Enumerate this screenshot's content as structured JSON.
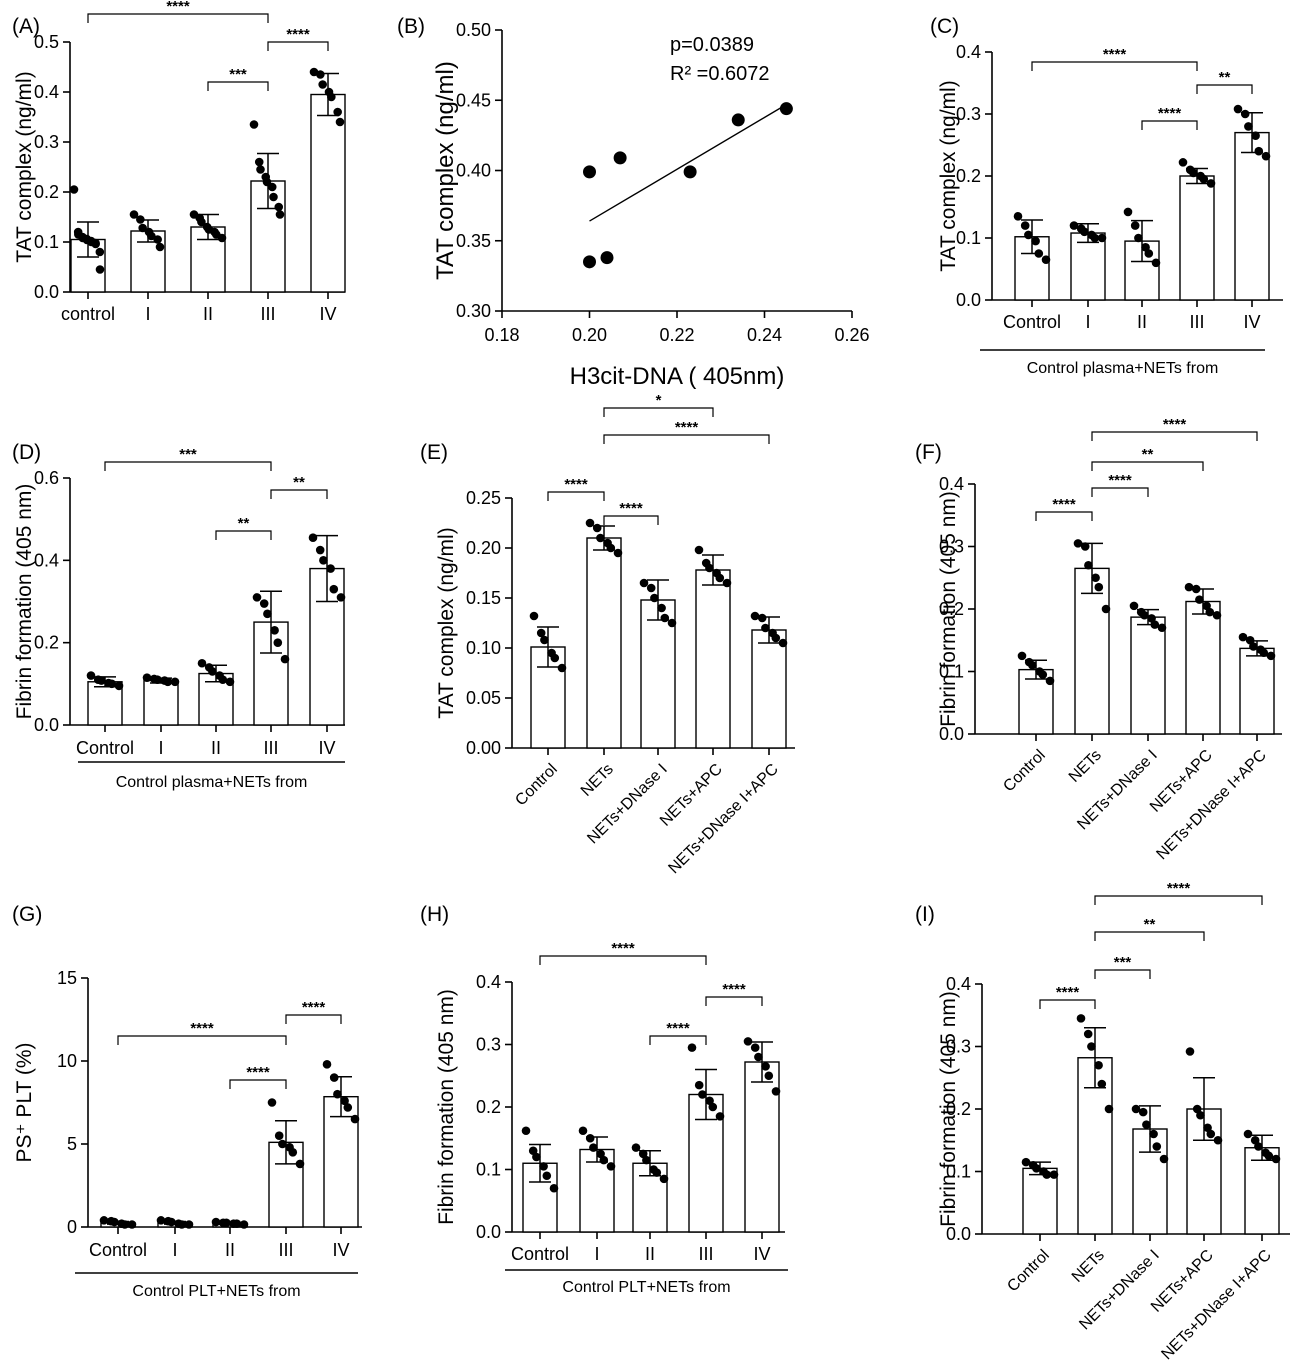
{
  "chart_data": [
    {
      "panel": "(A)",
      "type": "bar",
      "ylabel": "TAT complex (ng/ml)",
      "ylim": [
        0,
        0.5
      ],
      "yticks": [
        "0.0",
        "0.1",
        "0.2",
        "0.3",
        "0.4",
        "0.5"
      ],
      "categories": [
        "control",
        "I",
        "II",
        "III",
        "IV"
      ],
      "means": [
        0.105,
        0.122,
        0.13,
        0.222,
        0.395
      ],
      "sd": [
        0.035,
        0.022,
        0.025,
        0.055,
        0.042
      ],
      "points": [
        [
          0.205,
          0.12,
          0.115,
          0.11,
          0.108,
          0.106,
          0.104,
          0.102,
          0.1,
          0.098,
          0.096,
          0.08,
          0.045
        ],
        [
          0.155,
          0.145,
          0.128,
          0.12,
          0.112,
          0.105,
          0.09
        ],
        [
          0.155,
          0.148,
          0.14,
          0.13,
          0.125,
          0.12,
          0.115,
          0.108
        ],
        [
          0.335,
          0.26,
          0.245,
          0.23,
          0.22,
          0.21,
          0.19,
          0.17,
          0.155
        ],
        [
          0.44,
          0.435,
          0.415,
          0.4,
          0.39,
          0.36,
          0.34
        ]
      ],
      "comparisons": [
        {
          "from": 0,
          "to": 3,
          "label": "****"
        },
        {
          "from": 2,
          "to": 3,
          "label": "***"
        },
        {
          "from": 3,
          "to": 4,
          "label": "****"
        }
      ]
    },
    {
      "panel": "(B)",
      "type": "scatter",
      "xlabel": "H3cit-DNA ( 405nm)",
      "ylabel": "TAT complex (ng/ml)",
      "xlim": [
        0.18,
        0.26
      ],
      "ylim": [
        0.3,
        0.5
      ],
      "xticks": [
        "0.18",
        "0.20",
        "0.22",
        "0.24",
        "0.26"
      ],
      "yticks": [
        "0.30",
        "0.35",
        "0.40",
        "0.45",
        "0.50"
      ],
      "points": [
        [
          0.2,
          0.399
        ],
        [
          0.2,
          0.335
        ],
        [
          0.204,
          0.338
        ],
        [
          0.207,
          0.409
        ],
        [
          0.223,
          0.399
        ],
        [
          0.234,
          0.436
        ],
        [
          0.245,
          0.444
        ]
      ],
      "fit": [
        [
          0.2,
          0.364
        ],
        [
          0.245,
          0.447
        ]
      ],
      "stats": [
        "p=0.0389",
        "R² =0.6072"
      ]
    },
    {
      "panel": "(C)",
      "type": "bar",
      "ylabel": "TAT complex (ng/ml)",
      "ylim": [
        0,
        0.4
      ],
      "yticks": [
        "0.0",
        "0.1",
        "0.2",
        "0.3",
        "0.4"
      ],
      "categories": [
        "Control",
        "I",
        "II",
        "III",
        "IV"
      ],
      "group_label": "Control plasma+NETs from",
      "means": [
        0.102,
        0.108,
        0.095,
        0.2,
        0.27
      ],
      "sd": [
        0.027,
        0.015,
        0.033,
        0.012,
        0.032
      ],
      "points": [
        [
          0.135,
          0.12,
          0.105,
          0.095,
          0.075,
          0.065
        ],
        [
          0.12,
          0.115,
          0.11,
          0.105,
          0.1,
          0.1
        ],
        [
          0.142,
          0.12,
          0.1,
          0.085,
          0.075,
          0.06
        ],
        [
          0.222,
          0.21,
          0.205,
          0.2,
          0.195,
          0.188
        ],
        [
          0.308,
          0.3,
          0.28,
          0.265,
          0.24,
          0.232
        ]
      ],
      "comparisons": [
        {
          "from": 0,
          "to": 3,
          "label": "****"
        },
        {
          "from": 2,
          "to": 3,
          "label": "****"
        },
        {
          "from": 3,
          "to": 4,
          "label": "**"
        }
      ]
    },
    {
      "panel": "(D)",
      "type": "bar",
      "ylabel": "Fibrin formation (405 nm)",
      "ylim": [
        0,
        0.6
      ],
      "yticks": [
        "0.0",
        "0.2",
        "0.4",
        "0.6"
      ],
      "categories": [
        "Control",
        "I",
        "II",
        "III",
        "IV"
      ],
      "group_label": "Control plasma+NETs from",
      "means": [
        0.105,
        0.108,
        0.125,
        0.25,
        0.38
      ],
      "sd": [
        0.012,
        0.006,
        0.02,
        0.075,
        0.08
      ],
      "points": [
        [
          0.12,
          0.11,
          0.108,
          0.102,
          0.1,
          0.095
        ],
        [
          0.115,
          0.112,
          0.11,
          0.108,
          0.105,
          0.105
        ],
        [
          0.15,
          0.14,
          0.13,
          0.12,
          0.11,
          0.105
        ],
        [
          0.31,
          0.295,
          0.27,
          0.23,
          0.2,
          0.16
        ],
        [
          0.455,
          0.425,
          0.4,
          0.38,
          0.33,
          0.31
        ]
      ],
      "comparisons": [
        {
          "from": 0,
          "to": 3,
          "label": "***"
        },
        {
          "from": 2,
          "to": 3,
          "label": "**"
        },
        {
          "from": 3,
          "to": 4,
          "label": "**"
        }
      ]
    },
    {
      "panel": "(E)",
      "type": "bar",
      "ylabel": "TAT complex (ng/ml)",
      "ylim": [
        0,
        0.25
      ],
      "yticks": [
        "0.00",
        "0.05",
        "0.10",
        "0.15",
        "0.20",
        "0.25"
      ],
      "categories": [
        "Control",
        "NETs",
        "NETs+DNase I",
        "NETs+APC",
        "NETs+DNase I+APC"
      ],
      "means": [
        0.101,
        0.21,
        0.148,
        0.178,
        0.118
      ],
      "sd": [
        0.02,
        0.012,
        0.02,
        0.015,
        0.013
      ],
      "points": [
        [
          0.132,
          0.115,
          0.108,
          0.095,
          0.09,
          0.08
        ],
        [
          0.225,
          0.22,
          0.21,
          0.205,
          0.2,
          0.195
        ],
        [
          0.165,
          0.16,
          0.15,
          0.14,
          0.13,
          0.125
        ],
        [
          0.198,
          0.185,
          0.18,
          0.175,
          0.17,
          0.165
        ],
        [
          0.132,
          0.13,
          0.12,
          0.115,
          0.11,
          0.105
        ]
      ],
      "comparisons": [
        {
          "from": 0,
          "to": 1,
          "label": "****"
        },
        {
          "from": 1,
          "to": 2,
          "label": "****"
        },
        {
          "from": 1,
          "to": 3,
          "label": "*"
        },
        {
          "from": 1,
          "to": 4,
          "label": "****"
        }
      ]
    },
    {
      "panel": "(F)",
      "type": "bar",
      "ylabel": "Fibrin formation (405 nm)",
      "ylim": [
        0,
        0.4
      ],
      "yticks": [
        "0.0",
        "0.1",
        "0.2",
        "0.3",
        "0.4"
      ],
      "categories": [
        "Control",
        "NETs",
        "NETs+DNase I",
        "NETs+APC",
        "NETs+DNase I+APC"
      ],
      "means": [
        0.103,
        0.265,
        0.187,
        0.212,
        0.137
      ],
      "sd": [
        0.015,
        0.04,
        0.012,
        0.02,
        0.012
      ],
      "points": [
        [
          0.125,
          0.115,
          0.11,
          0.1,
          0.095,
          0.085
        ],
        [
          0.305,
          0.3,
          0.27,
          0.25,
          0.235,
          0.2
        ],
        [
          0.205,
          0.195,
          0.19,
          0.185,
          0.175,
          0.17
        ],
        [
          0.235,
          0.232,
          0.215,
          0.205,
          0.195,
          0.19
        ],
        [
          0.155,
          0.15,
          0.14,
          0.135,
          0.13,
          0.125
        ]
      ],
      "comparisons": [
        {
          "from": 0,
          "to": 1,
          "label": "****"
        },
        {
          "from": 1,
          "to": 2,
          "label": "****"
        },
        {
          "from": 1,
          "to": 3,
          "label": "**"
        },
        {
          "from": 1,
          "to": 4,
          "label": "****"
        }
      ]
    },
    {
      "panel": "(G)",
      "type": "bar",
      "ylabel": "PS⁺ PLT (%)",
      "ylim": [
        0,
        15
      ],
      "yticks": [
        "0",
        "5",
        "10",
        "15"
      ],
      "categories": [
        "Control",
        "I",
        "II",
        "III",
        "IV"
      ],
      "group_label": "Control PLT+NETs from",
      "means": [
        0.25,
        0.25,
        0.22,
        5.1,
        7.85
      ],
      "sd": [
        0.08,
        0.08,
        0.06,
        1.3,
        1.2
      ],
      "points": [
        [
          0.4,
          0.35,
          0.3,
          0.2,
          0.15,
          0.15
        ],
        [
          0.4,
          0.35,
          0.3,
          0.2,
          0.15,
          0.15
        ],
        [
          0.3,
          0.25,
          0.25,
          0.2,
          0.2,
          0.15
        ],
        [
          7.5,
          5.5,
          5.0,
          4.8,
          4.5,
          3.8
        ],
        [
          9.8,
          9.0,
          8.0,
          7.6,
          7.2,
          6.5
        ]
      ],
      "comparisons": [
        {
          "from": 0,
          "to": 3,
          "label": "****"
        },
        {
          "from": 2,
          "to": 3,
          "label": "****"
        },
        {
          "from": 3,
          "to": 4,
          "label": "****"
        }
      ]
    },
    {
      "panel": "(H)",
      "type": "bar",
      "ylabel": "Fibrin formation (405 nm)",
      "ylim": [
        0,
        0.4
      ],
      "yticks": [
        "0.0",
        "0.1",
        "0.2",
        "0.3",
        "0.4"
      ],
      "categories": [
        "Control",
        "I",
        "II",
        "III",
        "IV"
      ],
      "group_label": "Control PLT+NETs from",
      "means": [
        0.11,
        0.132,
        0.11,
        0.22,
        0.272
      ],
      "sd": [
        0.03,
        0.02,
        0.02,
        0.04,
        0.032
      ],
      "points": [
        [
          0.162,
          0.13,
          0.12,
          0.105,
          0.09,
          0.07
        ],
        [
          0.162,
          0.15,
          0.135,
          0.125,
          0.115,
          0.105
        ],
        [
          0.135,
          0.125,
          0.115,
          0.1,
          0.095,
          0.085
        ],
        [
          0.295,
          0.235,
          0.22,
          0.21,
          0.2,
          0.185
        ],
        [
          0.305,
          0.295,
          0.28,
          0.265,
          0.25,
          0.225
        ]
      ],
      "comparisons": [
        {
          "from": 0,
          "to": 3,
          "label": "****"
        },
        {
          "from": 2,
          "to": 3,
          "label": "****"
        },
        {
          "from": 3,
          "to": 4,
          "label": "****"
        }
      ]
    },
    {
      "panel": "(I)",
      "type": "bar",
      "ylabel": "Fibrin formation (405 nm)",
      "ylim": [
        0,
        0.4
      ],
      "yticks": [
        "0.0",
        "0.1",
        "0.2",
        "0.3",
        "0.4"
      ],
      "categories": [
        "Control",
        "NETs",
        "NETs+DNase I",
        "NETs+APC",
        "NETs+DNase I+APC"
      ],
      "means": [
        0.105,
        0.282,
        0.168,
        0.2,
        0.138
      ],
      "sd": [
        0.01,
        0.048,
        0.037,
        0.05,
        0.02
      ],
      "points": [
        [
          0.115,
          0.11,
          0.105,
          0.1,
          0.095,
          0.095
        ],
        [
          0.345,
          0.32,
          0.3,
          0.27,
          0.24,
          0.2
        ],
        [
          0.2,
          0.195,
          0.175,
          0.16,
          0.14,
          0.12
        ],
        [
          0.292,
          0.2,
          0.19,
          0.17,
          0.16,
          0.15
        ],
        [
          0.16,
          0.15,
          0.14,
          0.13,
          0.125,
          0.12
        ]
      ],
      "comparisons": [
        {
          "from": 0,
          "to": 1,
          "label": "****"
        },
        {
          "from": 1,
          "to": 2,
          "label": "***"
        },
        {
          "from": 1,
          "to": 3,
          "label": "**"
        },
        {
          "from": 1,
          "to": 4,
          "label": "****"
        }
      ]
    }
  ]
}
